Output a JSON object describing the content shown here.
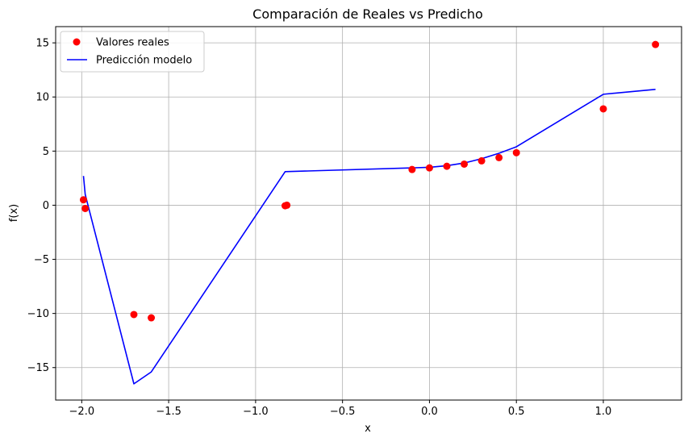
{
  "chart_data": {
    "type": "line",
    "title": "Comparación de Reales vs Predicho",
    "xlabel": "x",
    "ylabel": "f(x)",
    "xlim": [
      -2.15,
      1.45
    ],
    "ylim": [
      -18,
      16.5
    ],
    "xticks": [
      -2.0,
      -1.5,
      -1.0,
      -0.5,
      0.0,
      0.5,
      1.0
    ],
    "xtick_labels": [
      "−2.0",
      "−1.5",
      "−1.0",
      "−0.5",
      "0.0",
      "0.5",
      "1.0"
    ],
    "yticks": [
      -15,
      -10,
      -5,
      0,
      5,
      10,
      15
    ],
    "ytick_labels": [
      "−15",
      "−10",
      "−5",
      "0",
      "5",
      "10",
      "15"
    ],
    "grid": true,
    "legend_position": "top-left",
    "series": [
      {
        "name": "Valores reales",
        "kind": "scatter",
        "color": "#ff0000",
        "points": [
          {
            "x": -1.99,
            "y": 0.5
          },
          {
            "x": -1.98,
            "y": -0.3
          },
          {
            "x": -1.7,
            "y": -10.1
          },
          {
            "x": -1.6,
            "y": -10.4
          },
          {
            "x": -0.83,
            "y": -0.05
          },
          {
            "x": -0.82,
            "y": 0.0
          },
          {
            "x": -0.1,
            "y": 3.3
          },
          {
            "x": 0.0,
            "y": 3.45
          },
          {
            "x": 0.1,
            "y": 3.6
          },
          {
            "x": 0.2,
            "y": 3.8
          },
          {
            "x": 0.3,
            "y": 4.1
          },
          {
            "x": 0.4,
            "y": 4.4
          },
          {
            "x": 0.5,
            "y": 4.85
          },
          {
            "x": 1.0,
            "y": 8.9
          },
          {
            "x": 1.3,
            "y": 14.85
          }
        ]
      },
      {
        "name": "Predicción modelo",
        "kind": "line",
        "color": "#0000ff",
        "points": [
          {
            "x": -1.99,
            "y": 2.7
          },
          {
            "x": -1.98,
            "y": 1.0
          },
          {
            "x": -1.7,
            "y": -16.5
          },
          {
            "x": -1.6,
            "y": -15.4
          },
          {
            "x": -0.83,
            "y": 3.1
          },
          {
            "x": -0.1,
            "y": 3.45
          },
          {
            "x": 0.0,
            "y": 3.5
          },
          {
            "x": 0.1,
            "y": 3.65
          },
          {
            "x": 0.2,
            "y": 3.9
          },
          {
            "x": 0.3,
            "y": 4.3
          },
          {
            "x": 0.4,
            "y": 4.8
          },
          {
            "x": 0.5,
            "y": 5.4
          },
          {
            "x": 1.0,
            "y": 10.25
          },
          {
            "x": 1.3,
            "y": 10.7
          }
        ]
      }
    ]
  }
}
